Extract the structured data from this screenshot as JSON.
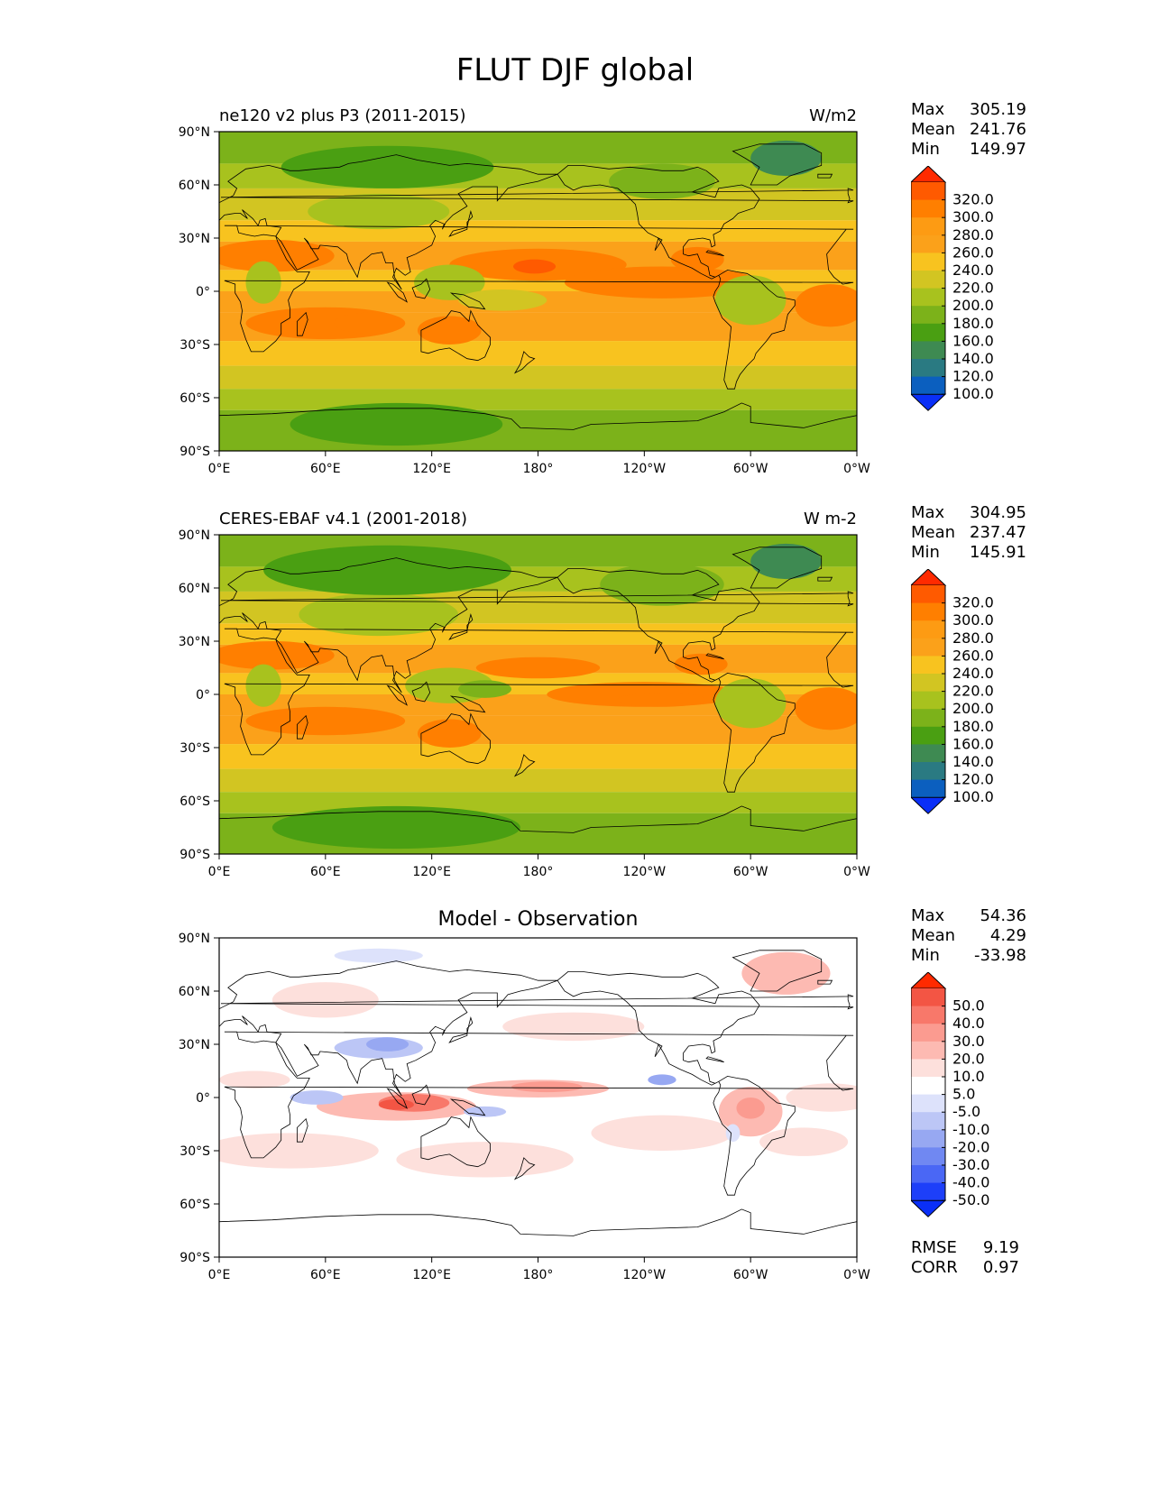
{
  "title": "FLUT DJF global",
  "axes": {
    "lat_ticks": [
      "90°N",
      "60°N",
      "30°N",
      "0°",
      "30°S",
      "60°S",
      "90°S"
    ],
    "lon_ticks": [
      "0°E",
      "60°E",
      "120°E",
      "180°",
      "120°W",
      "60°W",
      "0°W"
    ]
  },
  "panels": [
    {
      "left_label": "ne120 v2 plus P3 (2011-2015)",
      "right_label": "W/m2",
      "center_label": "",
      "stats": [
        {
          "label": "Max",
          "value": "305.19"
        },
        {
          "label": "Mean",
          "value": "241.76"
        },
        {
          "label": "Min",
          "value": "149.97"
        }
      ],
      "colorbar": {
        "levels": [
          "320.0",
          "300.0",
          "280.0",
          "260.0",
          "240.0",
          "220.0",
          "200.0",
          "180.0",
          "160.0",
          "140.0",
          "120.0",
          "100.0"
        ],
        "colors": [
          "#ff2a00",
          "#ff5a00",
          "#ff7f00",
          "#fd9b13",
          "#fba11a",
          "#f8c31f",
          "#d2c522",
          "#a8c21e",
          "#7cb21a",
          "#4a9f12",
          "#3e8a52",
          "#2a7a82",
          "#0b5fbf",
          "#0a2ff7"
        ]
      }
    },
    {
      "left_label": "CERES-EBAF v4.1 (2001-2018)",
      "right_label": "W m-2",
      "center_label": "",
      "stats": [
        {
          "label": "Max",
          "value": "304.95"
        },
        {
          "label": "Mean",
          "value": "237.47"
        },
        {
          "label": "Min",
          "value": "145.91"
        }
      ],
      "colorbar": {
        "levels": [
          "320.0",
          "300.0",
          "280.0",
          "260.0",
          "240.0",
          "220.0",
          "200.0",
          "180.0",
          "160.0",
          "140.0",
          "120.0",
          "100.0"
        ],
        "colors": [
          "#ff2a00",
          "#ff5a00",
          "#ff7f00",
          "#fd9b13",
          "#fba11a",
          "#f8c31f",
          "#d2c522",
          "#a8c21e",
          "#7cb21a",
          "#4a9f12",
          "#3e8a52",
          "#2a7a82",
          "#0b5fbf",
          "#0a2ff7"
        ]
      }
    },
    {
      "left_label": "",
      "right_label": "",
      "center_label": "Model - Observation",
      "stats": [
        {
          "label": "Max",
          "value": "54.36"
        },
        {
          "label": "Mean",
          "value": "4.29"
        },
        {
          "label": "Min",
          "value": "-33.98"
        }
      ],
      "extra_stats": [
        {
          "label": "RMSE",
          "value": "9.19"
        },
        {
          "label": "CORR",
          "value": "0.97"
        }
      ],
      "colorbar": {
        "levels": [
          "50.0",
          "40.0",
          "30.0",
          "20.0",
          "10.0",
          "5.0",
          "-5.0",
          "-10.0",
          "-20.0",
          "-30.0",
          "-40.0",
          "-50.0"
        ],
        "colors": [
          "#ff2a00",
          "#f35544",
          "#f8786a",
          "#fb9b90",
          "#fdbab2",
          "#fde0dc",
          "#ffffff",
          "#dde2fb",
          "#bcc6f6",
          "#97a8f2",
          "#7088f2",
          "#4a67f5",
          "#1d3ff9",
          "#0a2ff7"
        ]
      }
    }
  ],
  "map": {
    "abs_colors": {
      "c140": "#3e8a52",
      "c160": "#4a9f12",
      "c180": "#7cb21a",
      "c200": "#a8c21e",
      "c220": "#d2c522",
      "c240": "#f8c31f",
      "c260": "#fba11a",
      "c280": "#ff7f00",
      "c300": "#ff5a00"
    },
    "diff_colors": {
      "pos5": "#fde0dc",
      "pos10": "#fdbab2",
      "pos20": "#fb9b90",
      "pos30": "#f8786a",
      "pos40": "#f35544",
      "neg5": "#dde2fb",
      "neg10": "#bcc6f6",
      "neg20": "#97a8f2"
    }
  }
}
